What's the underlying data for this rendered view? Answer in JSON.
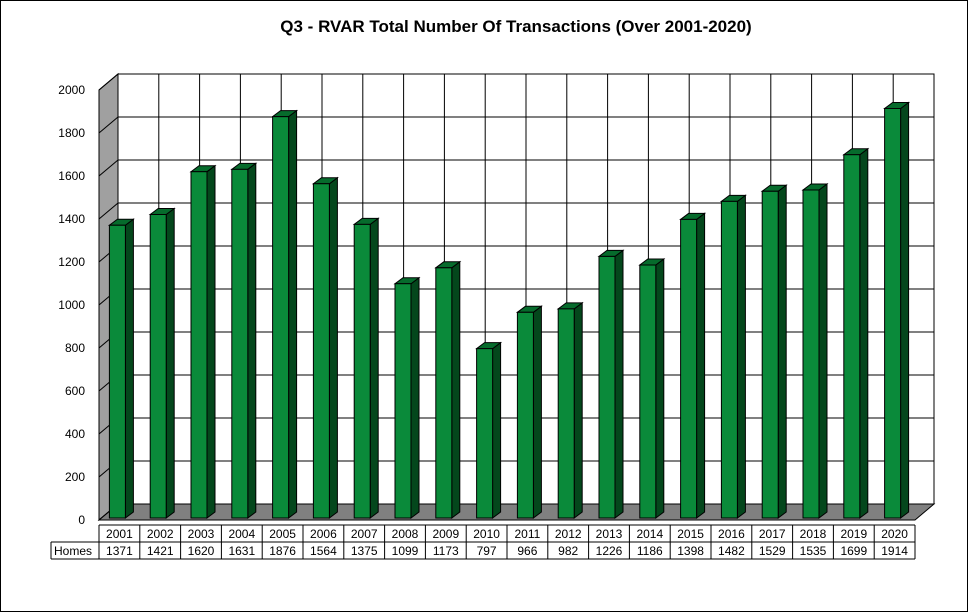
{
  "chart_data": {
    "type": "bar",
    "title": "Q3 - RVAR  Total Number Of Transactions (Over 2001-2020)",
    "categories": [
      "2001",
      "2002",
      "2003",
      "2004",
      "2005",
      "2006",
      "2007",
      "2008",
      "2009",
      "2010",
      "2011",
      "2012",
      "2013",
      "2014",
      "2015",
      "2016",
      "2017",
      "2018",
      "2019",
      "2020"
    ],
    "series": [
      {
        "name": "Homes",
        "values": [
          1371,
          1421,
          1620,
          1631,
          1876,
          1564,
          1375,
          1099,
          1173,
          797,
          966,
          982,
          1226,
          1186,
          1398,
          1482,
          1529,
          1535,
          1699,
          1914
        ]
      }
    ],
    "ylim": [
      0,
      2000
    ],
    "yticks": [
      0,
      200,
      400,
      600,
      800,
      1000,
      1200,
      1400,
      1600,
      1800,
      2000
    ],
    "xlabel": "",
    "ylabel": "",
    "grid": true,
    "data_table": true,
    "colors": {
      "bar_front": "#0a8a3a",
      "bar_side": "#04471c",
      "bar_top": "#066b2c",
      "floor": "#808080",
      "wall": "#a0a0a0"
    }
  }
}
